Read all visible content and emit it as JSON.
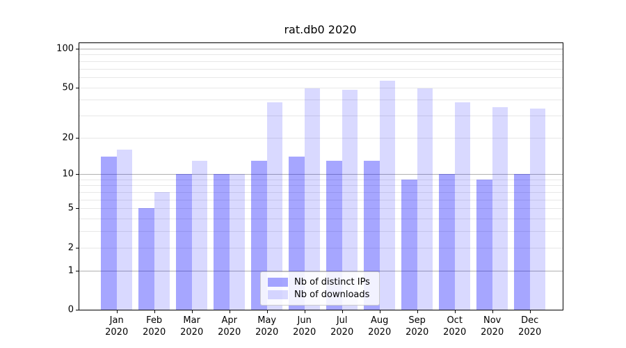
{
  "chart_data": {
    "type": "bar",
    "title": "rat.db0 2020",
    "categories": [
      "Jan 2020",
      "Feb 2020",
      "Mar 2020",
      "Apr 2020",
      "May 2020",
      "Jun 2020",
      "Jul 2020",
      "Aug 2020",
      "Sep 2020",
      "Oct 2020",
      "Nov 2020",
      "Dec 2020"
    ],
    "series": [
      {
        "name": "Nb of distinct IPs",
        "color": "rgba(0,0,255,0.35)",
        "values": [
          14,
          5,
          10,
          10,
          13,
          14,
          13,
          13,
          9,
          10,
          9,
          10
        ]
      },
      {
        "name": "Nb of downloads",
        "color": "rgba(0,0,255,0.15)",
        "values": [
          16,
          7,
          13,
          10,
          38,
          49,
          48,
          56,
          49,
          38,
          35,
          34
        ]
      },
      {
        "name": "_colors_hex_equivalent",
        "ips_hex": "#a6a6ff",
        "downloads_hex": "#d9d9ff"
      }
    ],
    "xlabel": "",
    "ylabel": "",
    "yscale": "log1p",
    "ylim": [
      0,
      111
    ],
    "yticks": [
      0,
      1,
      2,
      5,
      10,
      20,
      50,
      100
    ],
    "grid": {
      "on": true,
      "major": [
        1,
        10,
        100
      ],
      "minor": [
        2,
        3,
        4,
        5,
        6,
        7,
        8,
        9,
        20,
        30,
        40,
        50,
        60,
        70,
        80,
        90
      ],
      "major_color": "#b0b0b0",
      "minor_color": "#e7e7e7"
    },
    "legend": {
      "position": "lower center"
    }
  }
}
